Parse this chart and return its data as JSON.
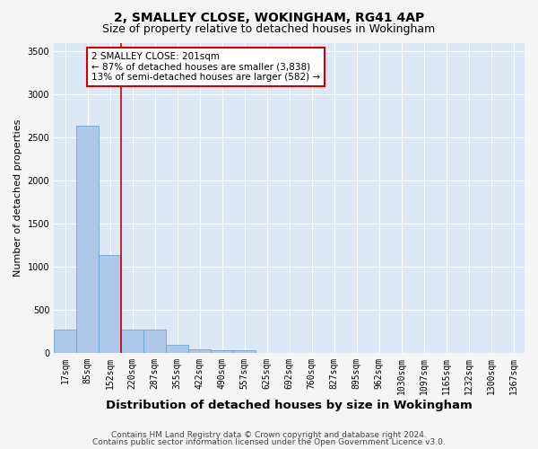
{
  "title": "2, SMALLEY CLOSE, WOKINGHAM, RG41 4AP",
  "subtitle": "Size of property relative to detached houses in Wokingham",
  "xlabel": "Distribution of detached houses by size in Wokingham",
  "ylabel": "Number of detached properties",
  "bar_labels": [
    "17sqm",
    "85sqm",
    "152sqm",
    "220sqm",
    "287sqm",
    "355sqm",
    "422sqm",
    "490sqm",
    "557sqm",
    "625sqm",
    "692sqm",
    "760sqm",
    "827sqm",
    "895sqm",
    "962sqm",
    "1030sqm",
    "1097sqm",
    "1165sqm",
    "1232sqm",
    "1300sqm",
    "1367sqm"
  ],
  "bar_values": [
    270,
    2640,
    1140,
    275,
    270,
    90,
    45,
    35,
    30,
    0,
    0,
    0,
    0,
    0,
    0,
    0,
    0,
    0,
    0,
    0,
    0
  ],
  "bar_color": "#aec6e8",
  "bar_edgecolor": "#5a9fd4",
  "ylim": [
    0,
    3600
  ],
  "yticks": [
    0,
    500,
    1000,
    1500,
    2000,
    2500,
    3000,
    3500
  ],
  "vline_x": 2.5,
  "vline_color": "#cc0000",
  "annotation_text": "2 SMALLEY CLOSE: 201sqm\n← 87% of detached houses are smaller (3,838)\n13% of semi-detached houses are larger (582) →",
  "annotation_box_facecolor": "#ffffff",
  "annotation_box_edgecolor": "#cc0000",
  "footer_line1": "Contains HM Land Registry data © Crown copyright and database right 2024.",
  "footer_line2": "Contains public sector information licensed under the Open Government Licence v3.0.",
  "plot_bg_color": "#dce8f5",
  "grid_color": "#ffffff",
  "fig_bg_color": "#f5f5f5",
  "title_fontsize": 10,
  "subtitle_fontsize": 9,
  "xlabel_fontsize": 9.5,
  "ylabel_fontsize": 8,
  "tick_fontsize": 7,
  "annotation_fontsize": 7.5,
  "footer_fontsize": 6.5
}
